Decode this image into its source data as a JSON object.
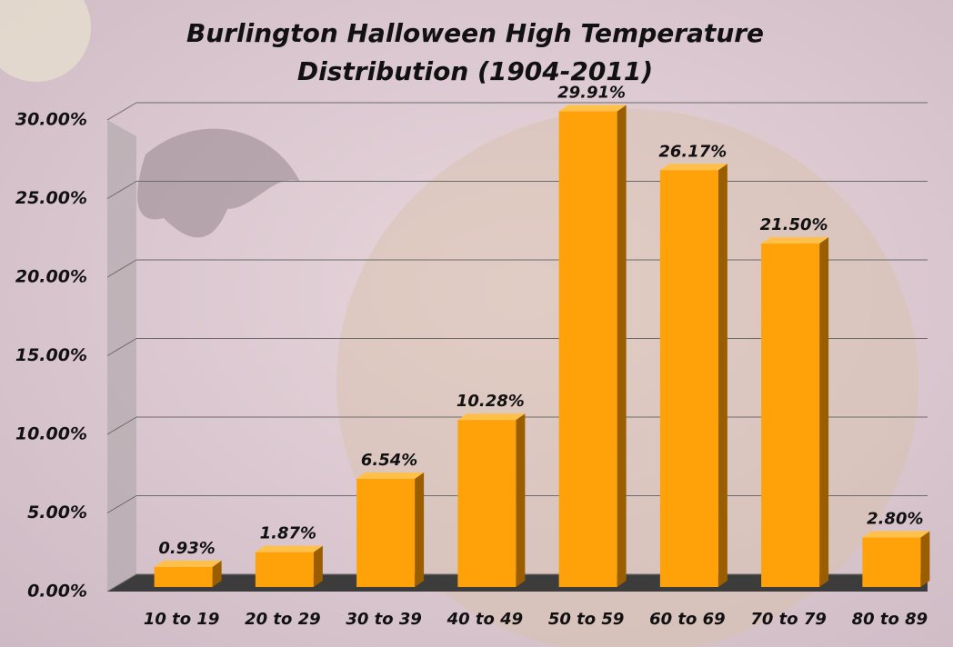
{
  "chart_data": {
    "type": "bar",
    "title": "Burlington Halloween High Temperature Distribution (1904-2011)",
    "categories": [
      "10 to 19",
      "20 to 29",
      "30 to 39",
      "40 to 49",
      "50 to 59",
      "60 to 69",
      "70 to 79",
      "80 to 89"
    ],
    "values": [
      0.93,
      1.87,
      6.54,
      10.28,
      29.91,
      26.17,
      21.5,
      2.8
    ],
    "value_labels": [
      "0.93%",
      "1.87%",
      "6.54%",
      "10.28%",
      "29.91%",
      "26.17%",
      "21.50%",
      "2.80%"
    ],
    "color": "#ffa20a",
    "ylim": [
      0,
      30
    ],
    "yticks": [
      {
        "value": 0,
        "label": "0.00%"
      },
      {
        "value": 5,
        "label": "5.00%"
      },
      {
        "value": 10,
        "label": "10.00%"
      },
      {
        "value": 15,
        "label": "15.00%"
      },
      {
        "value": 20,
        "label": "20.00%"
      },
      {
        "value": 25,
        "label": "25.00%"
      },
      {
        "value": 30,
        "label": "30.00%"
      }
    ],
    "grid": true
  }
}
